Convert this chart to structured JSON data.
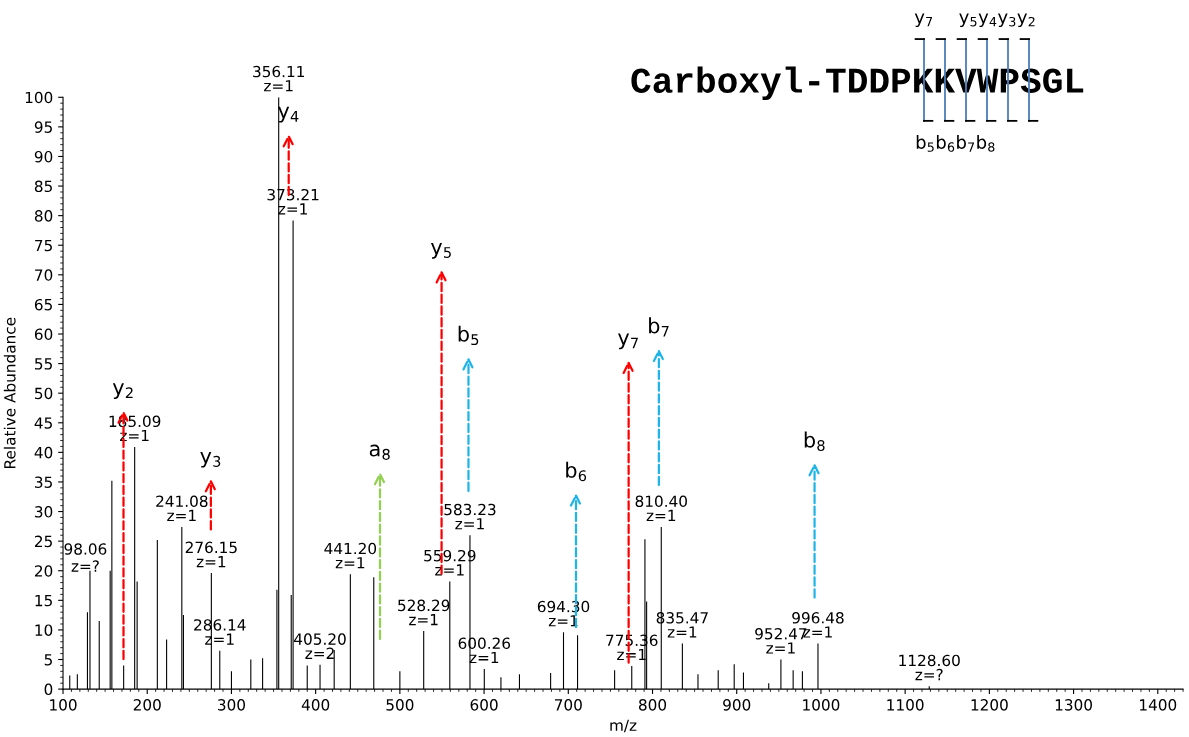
{
  "chart_data": {
    "type": "bar",
    "xlabel": "m/z",
    "ylabel": "Relative Abundance",
    "color": "#000000",
    "x": [
      108,
      117,
      129,
      132,
      143,
      156,
      158,
      172,
      185.09,
      188,
      212,
      223,
      241.08,
      243,
      276.15,
      286.14,
      300,
      323,
      337,
      354,
      356.11,
      371,
      373.21,
      390,
      405.2,
      422,
      441.2,
      469,
      500,
      528.29,
      559.29,
      583.23,
      600.26,
      620,
      642,
      679,
      694.3,
      711,
      755,
      775.36,
      791,
      793,
      810.4,
      835.47,
      854,
      878,
      897,
      908,
      938,
      952.47,
      967,
      978,
      996.48,
      1128.6
    ],
    "values": [
      2.3,
      2.5,
      13,
      20,
      11.5,
      20,
      35.2,
      4,
      40.9,
      18.2,
      25.2,
      8.4,
      27.4,
      12.5,
      19.6,
      6.5,
      3,
      5,
      5.2,
      16.8,
      100,
      15.9,
      79.2,
      4,
      4.1,
      6.6,
      19.4,
      18.9,
      3,
      9.8,
      18.2,
      26,
      3.4,
      2,
      2.5,
      2.7,
      9.6,
      9.1,
      3.2,
      3.9,
      25.3,
      14.8,
      27.4,
      7.7,
      2.5,
      3.2,
      4.2,
      2.8,
      1,
      5.0,
      3.2,
      3.0,
      7.7,
      0.5
    ],
    "xlim": [
      100,
      1430
    ],
    "xticks": [
      100,
      200,
      300,
      400,
      500,
      600,
      700,
      800,
      900,
      1000,
      1100,
      1200,
      1300,
      1400
    ],
    "ylim": [
      0,
      100
    ],
    "yticks": [
      0,
      5,
      10,
      15,
      20,
      25,
      30,
      35,
      40,
      45,
      50,
      55,
      60,
      65,
      70,
      75,
      80,
      85,
      90,
      95,
      100
    ],
    "grid": false,
    "annotations": [
      "Carboxyl-TDDPKKVWPSGL",
      "y$_{7}$",
      "y$_{5}$y$_{4}$y$_{3}$y$_{2}$",
      "b$_{5}$b$_{6}$b$_{7}$b$_{8}$",
      "98.06\nz=?",
      {
        "text": "185.09\nz=1",
        "x": 185.09,
        "y": 40.9
      },
      {
        "text": "241.08\nz=1",
        "x": 241.08,
        "y": 27.4
      },
      {
        "text": "276.15\nz=1",
        "x": 276.15,
        "y": 19.6
      },
      {
        "text": "286.14\nz=1",
        "x": 286.14,
        "y": 6.5
      },
      {
        "text": "356.11\nz=1",
        "x": 356.11,
        "y": 100
      },
      {
        "text": "373.21\nz=1",
        "x": 373.21,
        "y": 79.2
      },
      {
        "text": "405.20\nz=2",
        "x": 405.2,
        "y": 4.1
      },
      {
        "text": "441.20\nz=1",
        "x": 441.2,
        "y": 19.4
      },
      {
        "text": "528.29\nz=1",
        "x": 528.29,
        "y": 9.8
      },
      {
        "text": "559.29\nz=1",
        "x": 559.29,
        "y": 18.2
      },
      {
        "text": "583.23\nz=1",
        "x": 583.23,
        "y": 26
      },
      {
        "text": "600.26\nz=1",
        "x": 600.26,
        "y": 3.4
      },
      {
        "text": "694.30\nz=1",
        "x": 694.3,
        "y": 9.6
      },
      {
        "text": "775.36\nz=1",
        "x": 775.36,
        "y": 3.9
      },
      {
        "text": "810.40\nz=1",
        "x": 810.4,
        "y": 27.4
      },
      {
        "text": "835.47\nz=1",
        "x": 835.47,
        "y": 7.7
      },
      {
        "text": "952.47\nz=1",
        "x": 952.47,
        "y": 5.0
      },
      {
        "text": "996.48\nz=1",
        "x": 996.48,
        "y": 7.7
      },
      {
        "text": "1128.60\nz=?",
        "x": 1128.6,
        "y": 0.5
      },
      "y$_{2}$",
      "y$_{3}$",
      "y$_{4}$",
      "y$_{5}$",
      "b$_{5}$",
      "a$_{8}$",
      "b$_{6}$",
      "y$_{7}$",
      "b$_{7}$",
      "b$_{8}$"
    ]
  }
}
